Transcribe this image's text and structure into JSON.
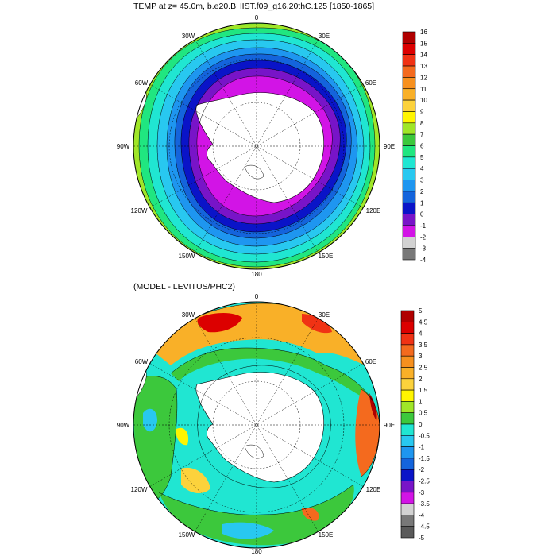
{
  "panels": [
    {
      "title": "TEMP at z=  45.0m, b.e20.BHIST.f09_g16.20thC.125 [1850-1865]",
      "lon_labels": [
        "0",
        "30E",
        "60E",
        "90E",
        "120E",
        "150E",
        "180",
        "150W",
        "120W",
        "90W",
        "60W",
        "30W"
      ],
      "colorbar_labels": [
        "16",
        "15",
        "14",
        "13",
        "12",
        "11",
        "10",
        "9",
        "8",
        "7",
        "6",
        "5",
        "4",
        "3",
        "2",
        "1",
        "0",
        "-1",
        "-2",
        "-3",
        "-4"
      ],
      "colorbar_colors": [
        "#b00000",
        "#dc0000",
        "#f03214",
        "#f46a1e",
        "#f7901e",
        "#f9b028",
        "#fcd23c",
        "#fff500",
        "#a0e628",
        "#3cc83c",
        "#20e680",
        "#20e6d2",
        "#28c8f0",
        "#1e96f0",
        "#1464dc",
        "#0a14c8",
        "#7814c8",
        "#d214e6",
        "#d2d2d2",
        "#787878"
      ]
    },
    {
      "title": "(MODEL - LEVITUS/PHC2)",
      "lon_labels": [
        "0",
        "30E",
        "60E",
        "90E",
        "120E",
        "150E",
        "180",
        "150W",
        "120W",
        "90W",
        "60W",
        "30W"
      ],
      "colorbar_labels": [
        "5",
        "4.5",
        "4",
        "3.5",
        "3",
        "2.5",
        "2",
        "1.5",
        "1",
        "0.5",
        "0",
        "-0.5",
        "-1",
        "-1.5",
        "-2",
        "-2.5",
        "-3",
        "-3.5",
        "-4",
        "-4.5",
        "-5"
      ],
      "colorbar_colors": [
        "#b00000",
        "#dc0000",
        "#f03214",
        "#f46a1e",
        "#f7901e",
        "#f9b028",
        "#fcd23c",
        "#fff500",
        "#a0e628",
        "#3cc83c",
        "#20e6d2",
        "#28c8f0",
        "#1e96f0",
        "#1464dc",
        "#0a14c8",
        "#7814c8",
        "#d214e6",
        "#d2d2d2",
        "#787878",
        "#5a5a5a"
      ]
    }
  ]
}
